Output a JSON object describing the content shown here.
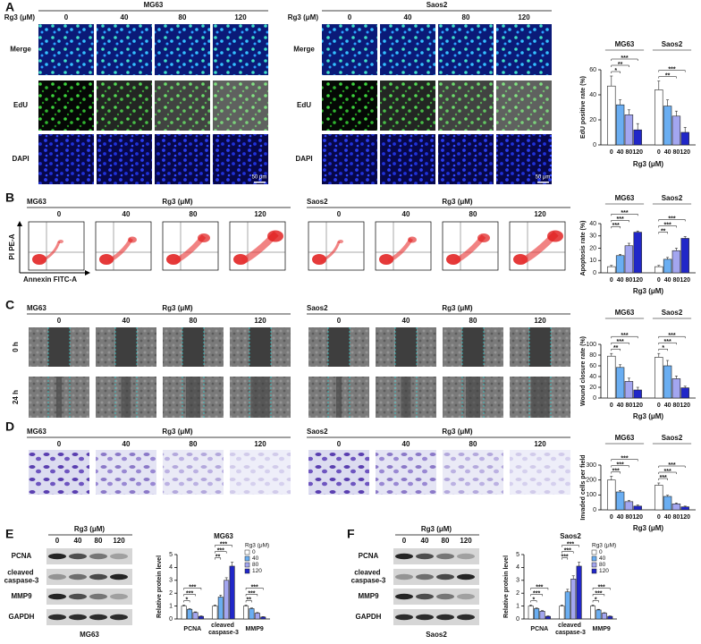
{
  "panels": {
    "A": {
      "label": "A",
      "rg3": "Rg3 (μM)",
      "doses": [
        "0",
        "40",
        "80",
        "120"
      ],
      "cell_lines": [
        "MG63",
        "Saos2"
      ],
      "rows": [
        "Merge",
        "EdU",
        "DAPI"
      ],
      "scale_bar": "50 μm"
    },
    "B": {
      "label": "B",
      "rg3": "Rg3 (μM)",
      "doses": [
        "0",
        "40",
        "80",
        "120"
      ],
      "cell_lines": [
        "MG63",
        "Saos2"
      ],
      "y_axis": "PI PE-A",
      "x_axis": "Annexin FITC-A"
    },
    "C": {
      "label": "C",
      "rg3": "Rg3 (μM)",
      "doses": [
        "0",
        "40",
        "80",
        "120"
      ],
      "cell_lines": [
        "MG63",
        "Saos2"
      ],
      "rows": [
        "0 h",
        "24 h"
      ]
    },
    "D": {
      "label": "D",
      "rg3": "Rg3 (μM)",
      "doses": [
        "0",
        "40",
        "80",
        "120"
      ],
      "cell_lines": [
        "MG63",
        "Saos2"
      ]
    },
    "E": {
      "label": "E",
      "rg3": "Rg3 (μM)",
      "doses": [
        "0",
        "40",
        "80",
        "120"
      ],
      "proteins": [
        "PCNA",
        "cleaved caspase-3",
        "MMP9",
        "GAPDH"
      ],
      "cell_line": "MG63"
    },
    "F": {
      "label": "F",
      "rg3": "Rg3 (μM)",
      "doses": [
        "0",
        "40",
        "80",
        "120"
      ],
      "proteins": [
        "PCNA",
        "cleaved caspase-3",
        "MMP9",
        "GAPDH"
      ],
      "cell_line": "Saos2"
    }
  },
  "chart_data": [
    {
      "type": "bar",
      "y_label": "EdU positive rate (%)",
      "x_label": "Rg3 (μM)",
      "categories": [
        "MG63",
        "Saos2"
      ],
      "category_labels": "top",
      "bar_labels": true,
      "series": [
        {
          "name": "0",
          "color": "#ffffff",
          "values": [
            47,
            44
          ],
          "errors": [
            8,
            7
          ]
        },
        {
          "name": "40",
          "color": "#6aaef2",
          "values": [
            32,
            31
          ],
          "errors": [
            4,
            5
          ]
        },
        {
          "name": "80",
          "color": "#a3a6f0",
          "values": [
            24,
            23
          ],
          "errors": [
            4,
            4
          ]
        },
        {
          "name": "120",
          "color": "#2127c8",
          "values": [
            12,
            10
          ],
          "errors": [
            5,
            4
          ]
        }
      ],
      "ylim": [
        0,
        60
      ],
      "yticks": [
        0,
        20,
        40,
        60
      ],
      "significance": [
        [
          "*",
          "**",
          "***"
        ],
        [
          "**",
          "***"
        ]
      ]
    },
    {
      "type": "bar",
      "y_label": "Apoptosis rate (%)",
      "x_label": "Rg3 (μM)",
      "categories": [
        "MG63",
        "Saos2"
      ],
      "category_labels": "top",
      "bar_labels": true,
      "series": [
        {
          "name": "0",
          "color": "#ffffff",
          "values": [
            5,
            5
          ],
          "errors": [
            1,
            1
          ]
        },
        {
          "name": "40",
          "color": "#6aaef2",
          "values": [
            14,
            11
          ],
          "errors": [
            1,
            1.5
          ]
        },
        {
          "name": "80",
          "color": "#a3a6f0",
          "values": [
            22,
            18
          ],
          "errors": [
            2,
            2
          ]
        },
        {
          "name": "120",
          "color": "#2127c8",
          "values": [
            33,
            28
          ],
          "errors": [
            1,
            1.5
          ]
        }
      ],
      "ylim": [
        0,
        40
      ],
      "yticks": [
        0,
        10,
        20,
        30,
        40
      ],
      "significance": [
        [
          "***",
          "***",
          "***"
        ],
        [
          "**",
          "***",
          "***"
        ]
      ]
    },
    {
      "type": "bar",
      "y_label": "Wound closure rate (%)",
      "x_label": "Rg3 (μM)",
      "categories": [
        "MG63",
        "Saos2"
      ],
      "category_labels": "top",
      "bar_labels": true,
      "series": [
        {
          "name": "0",
          "color": "#ffffff",
          "values": [
            78,
            76
          ],
          "errors": [
            5,
            7
          ]
        },
        {
          "name": "40",
          "color": "#6aaef2",
          "values": [
            57,
            60
          ],
          "errors": [
            5,
            10
          ]
        },
        {
          "name": "80",
          "color": "#a3a6f0",
          "values": [
            31,
            36
          ],
          "errors": [
            6,
            5
          ]
        },
        {
          "name": "120",
          "color": "#2127c8",
          "values": [
            15,
            19
          ],
          "errors": [
            5,
            3
          ]
        }
      ],
      "ylim": [
        0,
        100
      ],
      "yticks": [
        0,
        20,
        40,
        60,
        80,
        100
      ],
      "significance": [
        [
          "**",
          "***",
          "***"
        ],
        [
          "*",
          "***",
          "***"
        ]
      ]
    },
    {
      "type": "bar",
      "y_label": "Invaded cells per field",
      "x_label": "Rg3 (μM)",
      "categories": [
        "MG63",
        "Saos2"
      ],
      "category_labels": "top",
      "bar_labels": true,
      "series": [
        {
          "name": "0",
          "color": "#ffffff",
          "values": [
            200,
            165
          ],
          "errors": [
            25,
            15
          ]
        },
        {
          "name": "40",
          "color": "#6aaef2",
          "values": [
            120,
            90
          ],
          "errors": [
            10,
            8
          ]
        },
        {
          "name": "80",
          "color": "#a3a6f0",
          "values": [
            55,
            40
          ],
          "errors": [
            8,
            6
          ]
        },
        {
          "name": "120",
          "color": "#2127c8",
          "values": [
            25,
            20
          ],
          "errors": [
            8,
            5
          ]
        }
      ],
      "ylim": [
        0,
        300
      ],
      "yticks": [
        0,
        100,
        200,
        300
      ],
      "significance": [
        [
          "***",
          "***",
          "***"
        ],
        [
          "***",
          "***",
          "***"
        ]
      ]
    },
    {
      "type": "bar",
      "title": "MG63",
      "y_label": "Relative protein level",
      "categories": [
        "PCNA",
        "cleaved caspase-3",
        "MMP9"
      ],
      "category_labels": "bottom",
      "bar_labels": false,
      "legend": true,
      "legend_title": "Rg3 (μM)",
      "series": [
        {
          "name": "0",
          "color": "#ffffff",
          "values": [
            1,
            1,
            1
          ],
          "errors": [
            0.08,
            0.08,
            0.08
          ]
        },
        {
          "name": "40",
          "color": "#6aaef2",
          "values": [
            0.75,
            1.7,
            0.8
          ],
          "errors": [
            0.05,
            0.15,
            0.05
          ]
        },
        {
          "name": "80",
          "color": "#a3a6f0",
          "values": [
            0.5,
            3,
            0.45
          ],
          "errors": [
            0.05,
            0.2,
            0.05
          ]
        },
        {
          "name": "120",
          "color": "#2127c8",
          "values": [
            0.2,
            4.1,
            0.15
          ],
          "errors": [
            0.04,
            0.3,
            0.03
          ]
        }
      ],
      "ylim": [
        0,
        5
      ],
      "yticks": [
        0,
        1,
        2,
        3,
        4,
        5
      ],
      "significance": [
        [
          "*",
          "***",
          "***"
        ],
        [
          "**",
          "***",
          "***"
        ],
        [
          "**",
          "***",
          "***"
        ]
      ]
    },
    {
      "type": "bar",
      "title": "Saos2",
      "y_label": "Relative protein level",
      "categories": [
        "PCNA",
        "cleaved caspase-3",
        "MMP9"
      ],
      "category_labels": "bottom",
      "bar_labels": false,
      "legend": true,
      "legend_title": "Rg3 (μM)",
      "series": [
        {
          "name": "0",
          "color": "#ffffff",
          "values": [
            1,
            1,
            1
          ],
          "errors": [
            0.08,
            0.08,
            0.08
          ]
        },
        {
          "name": "40",
          "color": "#6aaef2",
          "values": [
            0.8,
            2.1,
            0.7
          ],
          "errors": [
            0.05,
            0.2,
            0.05
          ]
        },
        {
          "name": "80",
          "color": "#a3a6f0",
          "values": [
            0.6,
            3.1,
            0.45
          ],
          "errors": [
            0.05,
            0.25,
            0.04
          ]
        },
        {
          "name": "120",
          "color": "#2127c8",
          "values": [
            0.2,
            4.1,
            0.2
          ],
          "errors": [
            0.04,
            0.3,
            0.03
          ]
        }
      ],
      "ylim": [
        0,
        5
      ],
      "yticks": [
        0,
        1,
        2,
        3,
        4,
        5
      ],
      "significance": [
        [
          "*",
          "***",
          "***"
        ],
        [
          "***",
          "***",
          "***"
        ],
        [
          "*",
          "***",
          "***"
        ]
      ]
    }
  ]
}
